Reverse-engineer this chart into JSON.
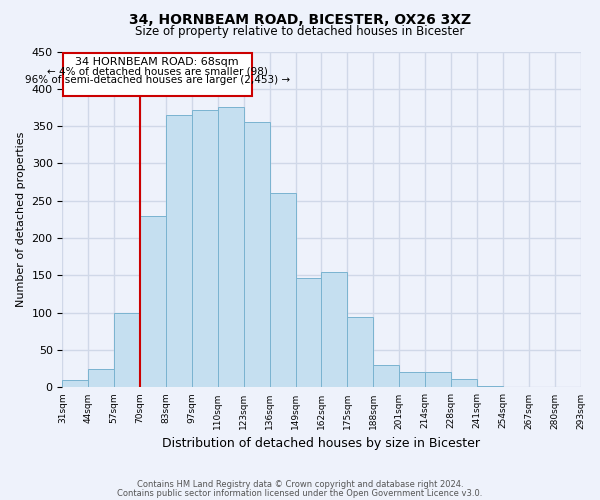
{
  "title1": "34, HORNBEAM ROAD, BICESTER, OX26 3XZ",
  "title2": "Size of property relative to detached houses in Bicester",
  "xlabel": "Distribution of detached houses by size in Bicester",
  "ylabel": "Number of detached properties",
  "footer1": "Contains HM Land Registry data © Crown copyright and database right 2024.",
  "footer2": "Contains public sector information licensed under the Open Government Licence v3.0.",
  "bin_labels": [
    "31sqm",
    "44sqm",
    "57sqm",
    "70sqm",
    "83sqm",
    "97sqm",
    "110sqm",
    "123sqm",
    "136sqm",
    "149sqm",
    "162sqm",
    "175sqm",
    "188sqm",
    "201sqm",
    "214sqm",
    "228sqm",
    "241sqm",
    "254sqm",
    "267sqm",
    "280sqm",
    "293sqm"
  ],
  "bar_values": [
    10,
    25,
    100,
    230,
    365,
    372,
    375,
    355,
    260,
    147,
    155,
    95,
    30,
    21,
    21,
    11,
    2,
    1,
    0,
    1
  ],
  "bar_color": "#c5dff0",
  "bar_edge_color": "#7ab3d0",
  "vline_x_index": 3,
  "property_line_label": "34 HORNBEAM ROAD: 68sqm",
  "annotation_smaller": "← 4% of detached houses are smaller (98)",
  "annotation_larger": "96% of semi-detached houses are larger (2,453) →",
  "annotation_box_color": "#ffffff",
  "annotation_box_edge": "#cc0000",
  "ylim": [
    0,
    450
  ],
  "yticks": [
    0,
    50,
    100,
    150,
    200,
    250,
    300,
    350,
    400,
    450
  ],
  "vline_color": "#cc0000",
  "bg_color": "#eef2fb",
  "grid_color": "#d0d8e8"
}
